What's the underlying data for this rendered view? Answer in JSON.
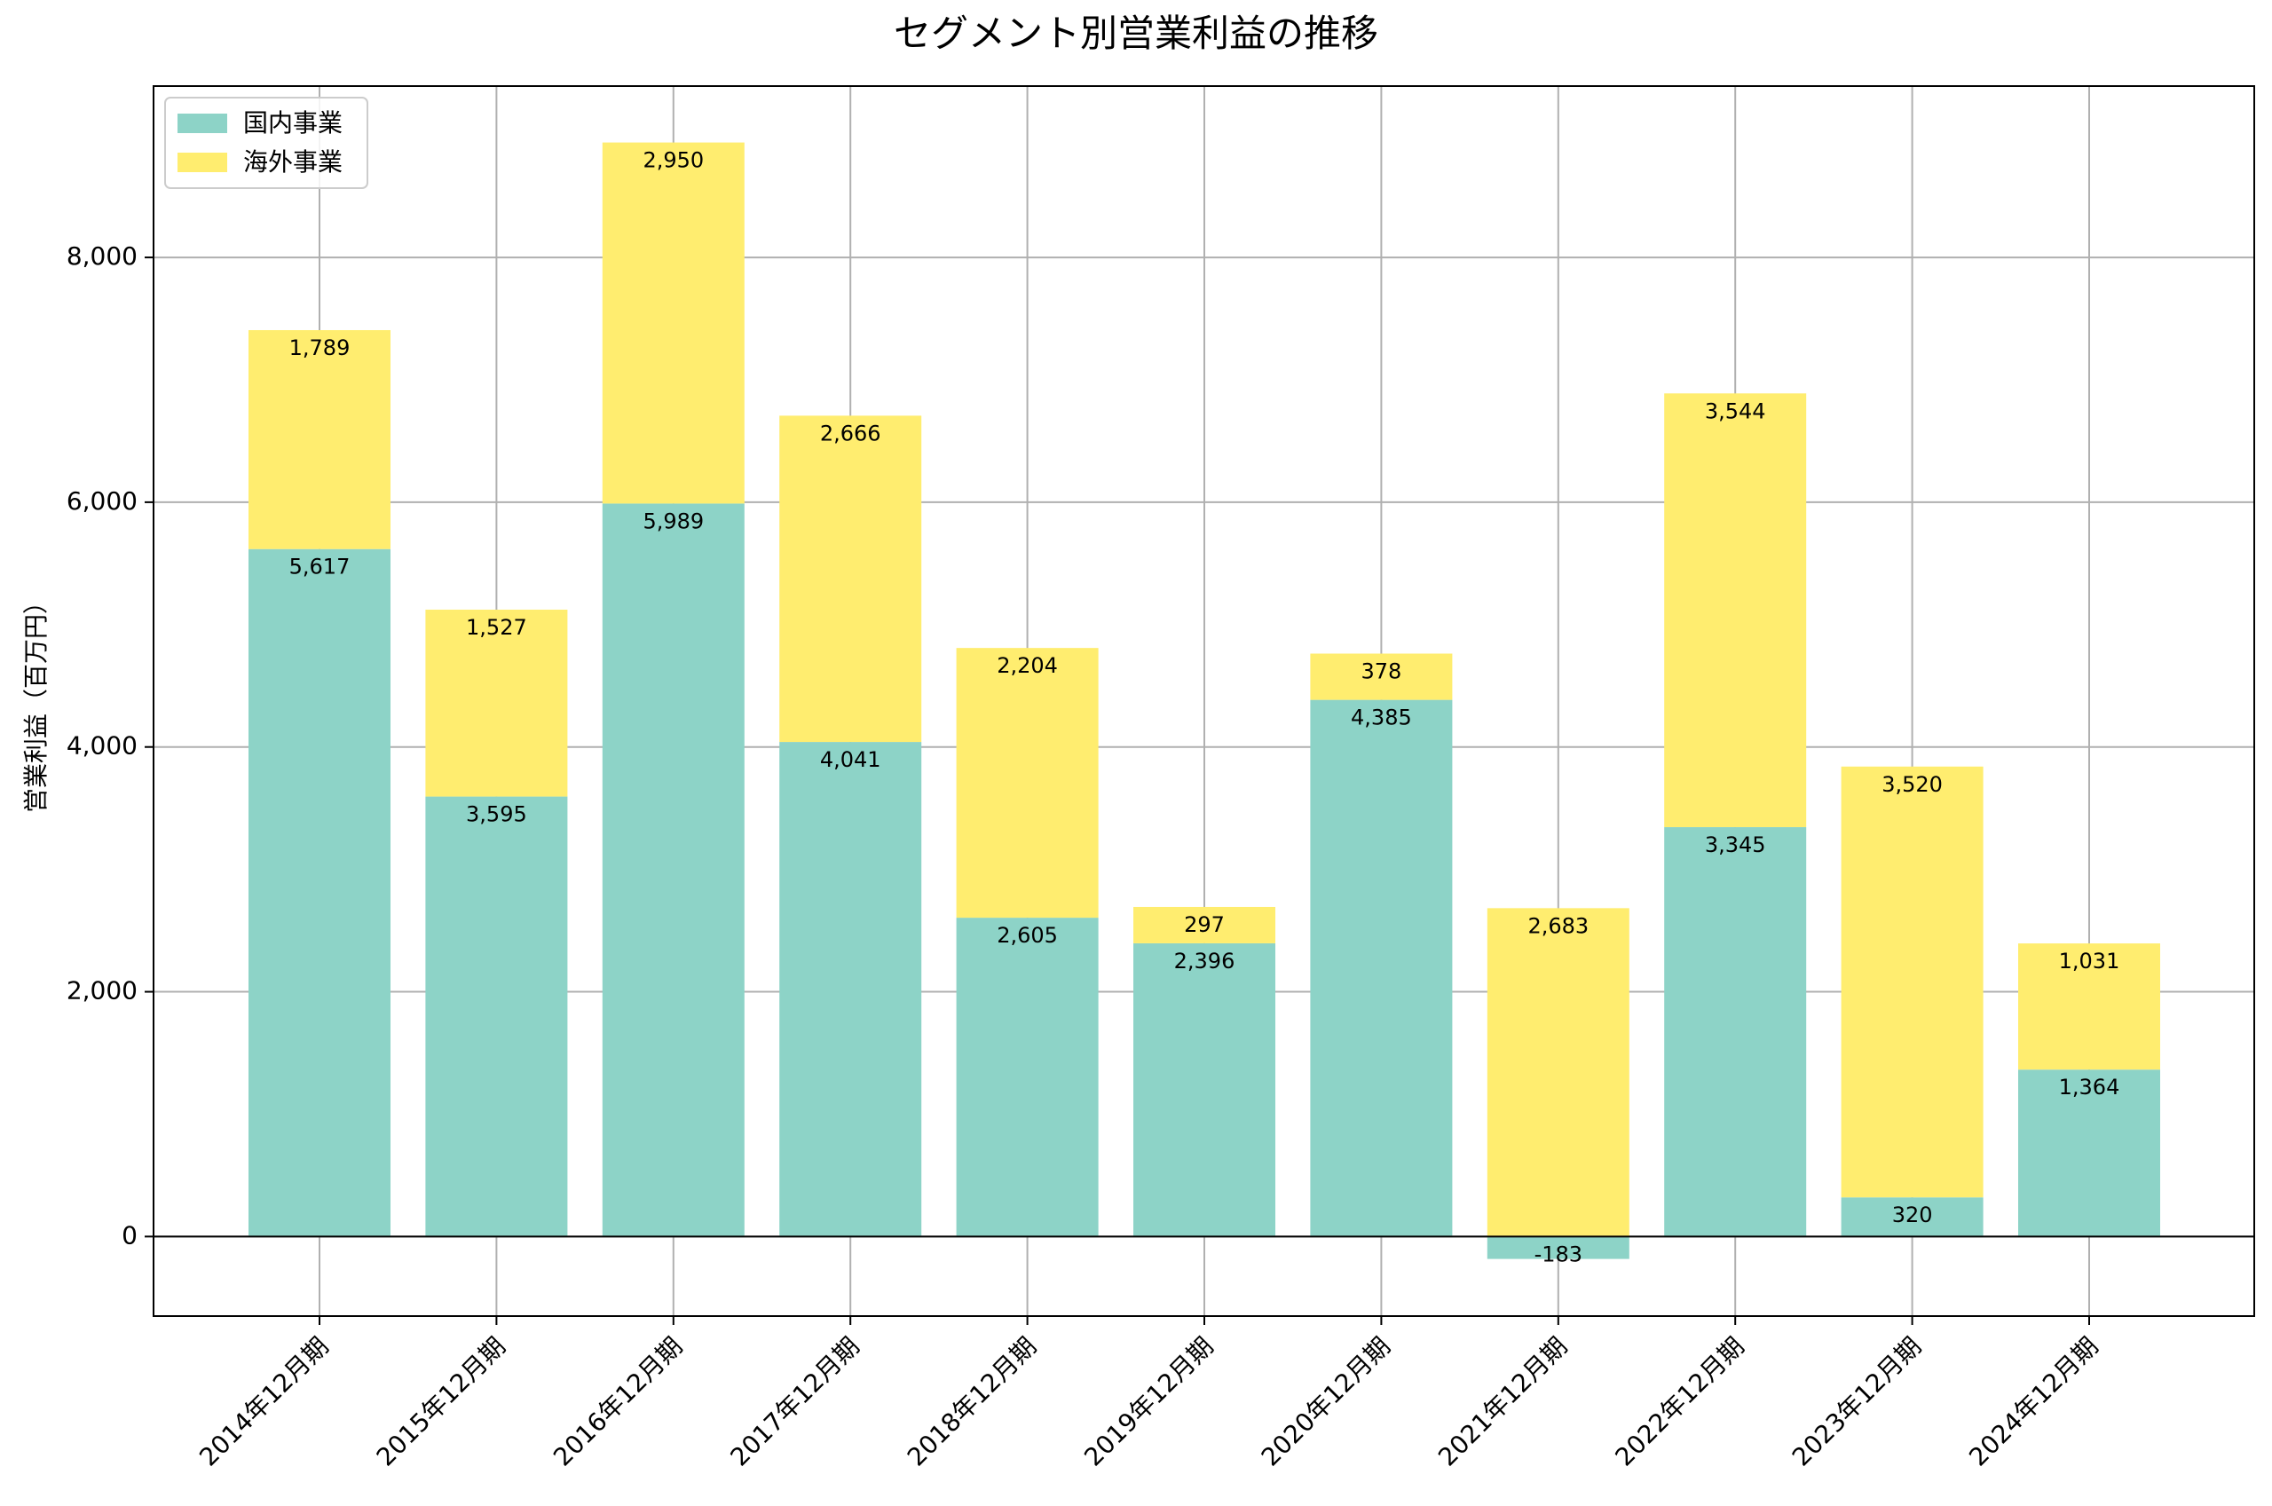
{
  "chart_data": {
    "type": "bar",
    "stacked": true,
    "title": "セグメント別営業利益の推移",
    "xlabel": "",
    "ylabel": "営業利益（百万円）",
    "ylim": [
      -650,
      9400
    ],
    "yticks": [
      0,
      2000,
      4000,
      6000,
      8000
    ],
    "ytick_labels": [
      "0",
      "2,000",
      "4,000",
      "6,000",
      "8,000"
    ],
    "grid": true,
    "legend_position": "top-left",
    "categories": [
      "2014年12月期",
      "2015年12月期",
      "2016年12月期",
      "2017年12月期",
      "2018年12月期",
      "2019年12月期",
      "2020年12月期",
      "2021年12月期",
      "2022年12月期",
      "2023年12月期",
      "2024年12月期"
    ],
    "series": [
      {
        "name": "国内事業",
        "color": "#8dd3c7",
        "values": [
          5617,
          3595,
          5989,
          4041,
          2605,
          2396,
          4385,
          -183,
          3345,
          320,
          1364
        ],
        "labels": [
          "5,617",
          "3,595",
          "5,989",
          "4,041",
          "2,605",
          "2,396",
          "4,385",
          "-183",
          "3,345",
          "320",
          "1,364"
        ]
      },
      {
        "name": "海外事業",
        "color": "#ffed6f",
        "values": [
          1789,
          1527,
          2950,
          2666,
          2204,
          297,
          378,
          2683,
          3544,
          3520,
          1031
        ],
        "labels": [
          "1,789",
          "1,527",
          "2,950",
          "2,666",
          "2,204",
          "297",
          "378",
          "2,683",
          "3,544",
          "3,520",
          "1,031"
        ]
      }
    ]
  }
}
